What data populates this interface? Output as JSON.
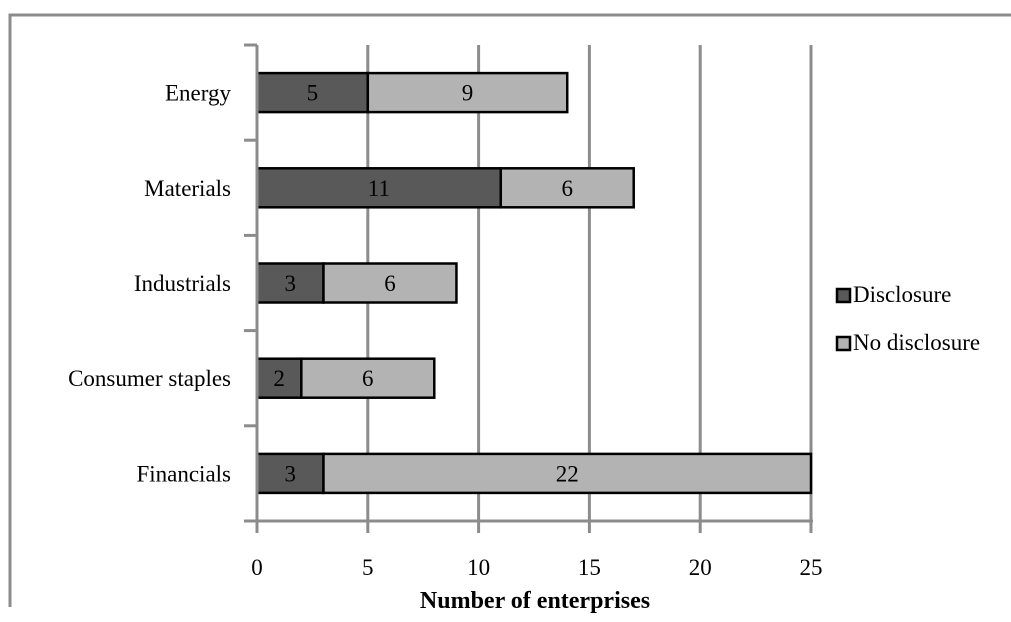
{
  "chart_data": {
    "type": "bar",
    "orientation": "horizontal",
    "stacked": true,
    "categories": [
      "Energy",
      "Materials",
      "Industrials",
      "Consumer staples",
      "Financials"
    ],
    "series": [
      {
        "name": "Disclosure",
        "values": [
          5,
          11,
          3,
          2,
          3
        ],
        "color": "#595959"
      },
      {
        "name": "No disclosure",
        "values": [
          9,
          6,
          6,
          6,
          22
        ],
        "color": "#b3b3b3"
      }
    ],
    "xlabel": "Number of enterprises",
    "xlim": [
      0,
      25
    ],
    "xticks": [
      0,
      5,
      10,
      15,
      20,
      25
    ],
    "grid": "vertical",
    "legend_position": "right",
    "data_labels": true
  }
}
